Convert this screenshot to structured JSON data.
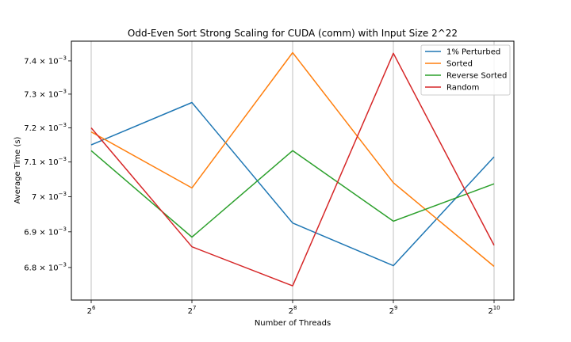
{
  "chart_data": {
    "type": "line",
    "title": "Odd-Even Sort Strong Scaling for CUDA (comm) with Input Size 2^22",
    "xlabel": "Number of Threads",
    "ylabel": "Average Time (s)",
    "x": [
      64,
      128,
      256,
      512,
      1024
    ],
    "x_tick_labels": [
      {
        "base": "2",
        "exp": "6"
      },
      {
        "base": "2",
        "exp": "7"
      },
      {
        "base": "2",
        "exp": "8"
      },
      {
        "base": "2",
        "exp": "9"
      },
      {
        "base": "2",
        "exp": "10"
      }
    ],
    "y_scale": "log",
    "ylim": [
      0.00671,
      0.00746
    ],
    "y_ticks": [
      {
        "value": 0.0068,
        "mant": "6.8",
        "exp": "−3"
      },
      {
        "value": 0.0069,
        "mant": "6.9",
        "exp": "−3"
      },
      {
        "value": 0.007,
        "mant": "7",
        "exp": "−3"
      },
      {
        "value": 0.0071,
        "mant": "7.1",
        "exp": "−3"
      },
      {
        "value": 0.0072,
        "mant": "7.2",
        "exp": "−3"
      },
      {
        "value": 0.0073,
        "mant": "7.3",
        "exp": "−3"
      },
      {
        "value": 0.0074,
        "mant": "7.4",
        "exp": "−3"
      }
    ],
    "grid": "x",
    "legend_position": "top-right",
    "series": [
      {
        "name": "1% Perturbed",
        "color": "#1f77b4",
        "values": [
          0.00715,
          0.007275,
          0.006925,
          0.006805,
          0.007115
        ]
      },
      {
        "name": "Sorted",
        "color": "#ff7f0e",
        "values": [
          0.007188,
          0.007025,
          0.007425,
          0.00704,
          0.006803
        ]
      },
      {
        "name": "Reverse Sorted",
        "color": "#2ca02c",
        "values": [
          0.007133,
          0.006885,
          0.007133,
          0.00693,
          0.007037
        ]
      },
      {
        "name": "Random",
        "color": "#d62728",
        "values": [
          0.0072,
          0.006858,
          0.006749,
          0.007423,
          0.006862
        ]
      }
    ]
  }
}
